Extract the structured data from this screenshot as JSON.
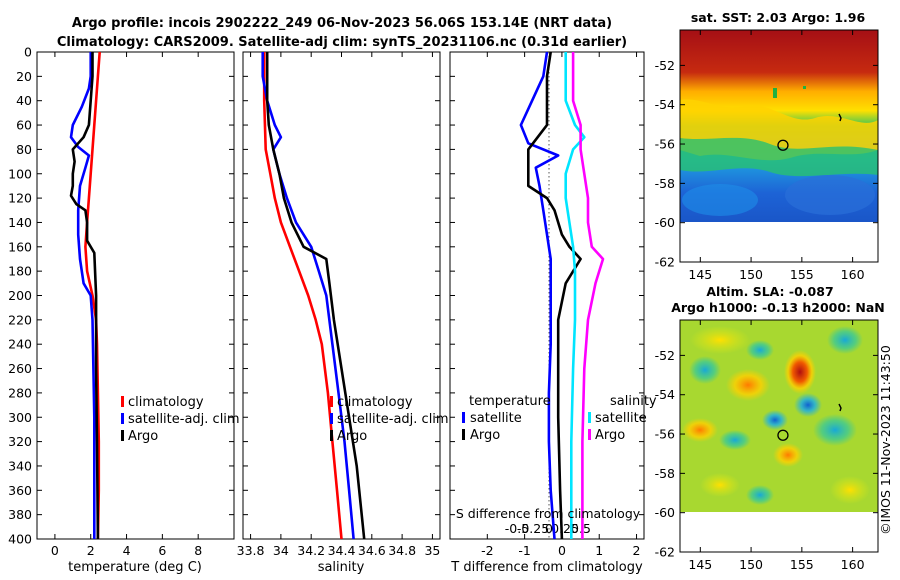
{
  "header": {
    "line1": "Argo profile: incois 2902222_249 06-Nov-2023 56.06S 153.14E (NRT data)",
    "line2": "Climatology: CARS2009. Satellite-adj clim: synTS_20231106.nc (0.31d earlier)"
  },
  "credit": "©IMOS 11-Nov-2023 11:43:50",
  "colors": {
    "climatology": "#ff0000",
    "satellite": "#0000ff",
    "argo": "#000000",
    "sal_satellite": "#00e5ff",
    "sal_argo": "#ff00ff"
  },
  "chart_data": [
    {
      "id": "temperature",
      "type": "line",
      "xlabel": "temperature (deg C)",
      "ylabel": "",
      "xlim": [
        -1,
        10
      ],
      "ylim": [
        400,
        0
      ],
      "xticks": [
        "0",
        "2",
        "4",
        "6",
        "8"
      ],
      "xtick_values": [
        0,
        2,
        4,
        6,
        8
      ],
      "yticks": [
        0,
        20,
        40,
        60,
        80,
        100,
        120,
        140,
        160,
        180,
        200,
        220,
        240,
        260,
        280,
        300,
        320,
        340,
        360,
        380,
        400
      ],
      "legend": [
        "climatology",
        "satellite-adj. clim",
        "Argo"
      ],
      "series": [
        {
          "name": "climatology",
          "color": "#ff0000",
          "points": [
            [
              2.5,
              0
            ],
            [
              2.4,
              20
            ],
            [
              2.3,
              40
            ],
            [
              2.2,
              60
            ],
            [
              2.1,
              80
            ],
            [
              2.0,
              100
            ],
            [
              1.9,
              120
            ],
            [
              1.8,
              140
            ],
            [
              1.7,
              160
            ],
            [
              1.8,
              180
            ],
            [
              2.1,
              200
            ],
            [
              2.3,
              220
            ],
            [
              2.35,
              240
            ],
            [
              2.4,
              280
            ],
            [
              2.45,
              320
            ],
            [
              2.45,
              360
            ],
            [
              2.4,
              400
            ]
          ]
        },
        {
          "name": "satellite-adj. clim",
          "color": "#0000ff",
          "points": [
            [
              2.0,
              0
            ],
            [
              2.0,
              20
            ],
            [
              1.9,
              30
            ],
            [
              1.5,
              45
            ],
            [
              1.0,
              60
            ],
            [
              0.9,
              70
            ],
            [
              1.3,
              78
            ],
            [
              1.9,
              85
            ],
            [
              1.7,
              95
            ],
            [
              1.4,
              110
            ],
            [
              1.3,
              130
            ],
            [
              1.3,
              150
            ],
            [
              1.4,
              170
            ],
            [
              1.6,
              190
            ],
            [
              2.0,
              200
            ],
            [
              2.1,
              220
            ],
            [
              2.15,
              260
            ],
            [
              2.2,
              300
            ],
            [
              2.2,
              340
            ],
            [
              2.2,
              400
            ]
          ]
        },
        {
          "name": "Argo",
          "color": "#000000",
          "points": [
            [
              2.1,
              0
            ],
            [
              2.1,
              20
            ],
            [
              2.0,
              40
            ],
            [
              1.9,
              60
            ],
            [
              1.6,
              70
            ],
            [
              1.0,
              80
            ],
            [
              1.1,
              90
            ],
            [
              1.0,
              100
            ],
            [
              1.0,
              110
            ],
            [
              0.9,
              118
            ],
            [
              1.2,
              125
            ],
            [
              1.7,
              130
            ],
            [
              1.8,
              140
            ],
            [
              1.8,
              155
            ],
            [
              2.2,
              165
            ],
            [
              2.3,
              200
            ],
            [
              2.3,
              260
            ],
            [
              2.35,
              320
            ],
            [
              2.4,
              400
            ]
          ]
        }
      ]
    },
    {
      "id": "salinity",
      "type": "line",
      "xlabel": "salinity",
      "ylabel": "",
      "xlim": [
        33.75,
        35.05
      ],
      "ylim": [
        400,
        0
      ],
      "xticks": [
        "33.8",
        "34",
        "34.2",
        "34.4",
        "34.6",
        "34.8",
        "35"
      ],
      "xtick_values": [
        33.8,
        34.0,
        34.2,
        34.4,
        34.6,
        34.8,
        35.0
      ],
      "legend": [
        "climatology",
        "satellite-adj. clim",
        "Argo"
      ],
      "series": [
        {
          "name": "climatology",
          "color": "#ff0000",
          "points": [
            [
              33.89,
              0
            ],
            [
              33.89,
              40
            ],
            [
              33.9,
              80
            ],
            [
              33.93,
              100
            ],
            [
              33.96,
              120
            ],
            [
              34.0,
              140
            ],
            [
              34.06,
              160
            ],
            [
              34.12,
              180
            ],
            [
              34.18,
              200
            ],
            [
              34.23,
              220
            ],
            [
              34.27,
              240
            ],
            [
              34.31,
              280
            ],
            [
              34.34,
              320
            ],
            [
              34.37,
              360
            ],
            [
              34.4,
              400
            ]
          ]
        },
        {
          "name": "satellite-adj. clim",
          "color": "#0000ff",
          "points": [
            [
              33.88,
              0
            ],
            [
              33.88,
              20
            ],
            [
              33.91,
              40
            ],
            [
              33.96,
              60
            ],
            [
              34.0,
              70
            ],
            [
              33.95,
              80
            ],
            [
              33.99,
              100
            ],
            [
              34.04,
              120
            ],
            [
              34.1,
              140
            ],
            [
              34.2,
              160
            ],
            [
              34.25,
              180
            ],
            [
              34.3,
              200
            ],
            [
              34.34,
              240
            ],
            [
              34.38,
              280
            ],
            [
              34.42,
              320
            ],
            [
              34.45,
              360
            ],
            [
              34.48,
              400
            ]
          ]
        },
        {
          "name": "Argo",
          "color": "#000000",
          "points": [
            [
              33.91,
              0
            ],
            [
              33.91,
              40
            ],
            [
              33.92,
              60
            ],
            [
              33.95,
              80
            ],
            [
              33.99,
              100
            ],
            [
              34.02,
              120
            ],
            [
              34.07,
              140
            ],
            [
              34.15,
              160
            ],
            [
              34.3,
              170
            ],
            [
              34.32,
              190
            ],
            [
              34.35,
              220
            ],
            [
              34.4,
              260
            ],
            [
              34.45,
              300
            ],
            [
              34.5,
              340
            ],
            [
              34.55,
              400
            ]
          ]
        }
      ]
    },
    {
      "id": "difference",
      "type": "line",
      "xlabel": "T difference from climatology",
      "x2label": "S difference from climatology",
      "xlim": [
        -3,
        2.2
      ],
      "ylim": [
        400,
        0
      ],
      "xticks": [
        "-2",
        "-1",
        "0",
        "1",
        "2"
      ],
      "xtick_values": [
        -2,
        -1,
        0,
        1,
        2
      ],
      "x2ticks": [
        "-0.5",
        "-0.25",
        "0",
        "0.25",
        "0.5"
      ],
      "legend_temperature_title": "temperature",
      "legend_salinity_title": "salinity",
      "legend_temperature": [
        "satellite",
        "Argo"
      ],
      "legend_salinity": [
        "satellite",
        "Argo"
      ],
      "series": [
        {
          "name": "T satellite",
          "color": "#0000ff",
          "points": [
            [
              -0.4,
              0
            ],
            [
              -0.5,
              20
            ],
            [
              -0.8,
              40
            ],
            [
              -1.1,
              60
            ],
            [
              -0.9,
              75
            ],
            [
              -0.1,
              85
            ],
            [
              -0.7,
              95
            ],
            [
              -0.6,
              110
            ],
            [
              -0.5,
              130
            ],
            [
              -0.4,
              150
            ],
            [
              -0.3,
              170
            ],
            [
              -0.3,
              200
            ],
            [
              -0.3,
              240
            ],
            [
              -0.35,
              280
            ],
            [
              -0.35,
              320
            ],
            [
              -0.3,
              360
            ],
            [
              -0.2,
              400
            ]
          ]
        },
        {
          "name": "T Argo",
          "color": "#000000",
          "points": [
            [
              -0.3,
              0
            ],
            [
              -0.4,
              20
            ],
            [
              -0.4,
              40
            ],
            [
              -0.4,
              60
            ],
            [
              -0.9,
              80
            ],
            [
              -0.9,
              95
            ],
            [
              -0.9,
              110
            ],
            [
              -0.4,
              120
            ],
            [
              -0.2,
              130
            ],
            [
              0.0,
              150
            ],
            [
              0.2,
              160
            ],
            [
              0.5,
              170
            ],
            [
              0.1,
              190
            ],
            [
              -0.1,
              220
            ],
            [
              -0.1,
              300
            ],
            [
              -0.05,
              360
            ],
            [
              0.0,
              400
            ]
          ]
        },
        {
          "name": "S satellite",
          "color": "#00e5ff",
          "points": [
            [
              0.1,
              0
            ],
            [
              0.1,
              40
            ],
            [
              0.35,
              60
            ],
            [
              0.6,
              70
            ],
            [
              0.3,
              80
            ],
            [
              0.1,
              100
            ],
            [
              0.1,
              120
            ],
            [
              0.2,
              140
            ],
            [
              0.3,
              160
            ],
            [
              0.35,
              180
            ],
            [
              0.35,
              220
            ],
            [
              0.3,
              260
            ],
            [
              0.25,
              320
            ],
            [
              0.25,
              400
            ]
          ]
        },
        {
          "name": "S Argo",
          "color": "#ff00ff",
          "points": [
            [
              0.3,
              0
            ],
            [
              0.3,
              40
            ],
            [
              0.5,
              60
            ],
            [
              0.5,
              80
            ],
            [
              0.6,
              100
            ],
            [
              0.7,
              120
            ],
            [
              0.7,
              140
            ],
            [
              0.8,
              160
            ],
            [
              1.1,
              170
            ],
            [
              0.9,
              190
            ],
            [
              0.7,
              220
            ],
            [
              0.6,
              260
            ],
            [
              0.55,
              320
            ],
            [
              0.55,
              400
            ]
          ]
        }
      ]
    }
  ],
  "maps": [
    {
      "id": "sst-map",
      "title": "sat. SST: 2.03 Argo: 1.96",
      "xticks": [
        "145",
        "150",
        "155",
        "160"
      ],
      "xtick_values": [
        145,
        150,
        155,
        160
      ],
      "yticks": [
        "-52",
        "-54",
        "-56",
        "-58",
        "-60",
        "-62"
      ],
      "ytick_values": [
        -52,
        -54,
        -56,
        -58,
        -60,
        -62
      ],
      "lon_range": [
        143,
        162.5
      ],
      "lat_range": [
        -62,
        -50.2
      ],
      "data_lat_min": -60,
      "marker": {
        "lon": 153.14,
        "lat": -56.06
      }
    },
    {
      "id": "sla-map",
      "title1": "Altim. SLA: -0.087",
      "title2": "Argo h1000: -0.13 h2000: NaN",
      "xticks": [
        "145",
        "150",
        "155",
        "160"
      ],
      "xtick_values": [
        145,
        150,
        155,
        160
      ],
      "yticks": [
        "-52",
        "-54",
        "-56",
        "-58",
        "-60",
        "-62"
      ],
      "ytick_values": [
        -52,
        -54,
        -56,
        -58,
        -60,
        -62
      ],
      "lon_range": [
        143,
        162.5
      ],
      "lat_range": [
        -62,
        -50.2
      ],
      "data_lat_min": -60,
      "marker": {
        "lon": 153.14,
        "lat": -56.06
      }
    }
  ]
}
